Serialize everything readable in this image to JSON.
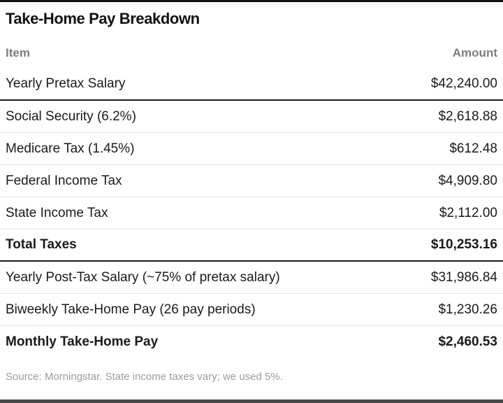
{
  "table": {
    "title": "Take-Home Pay Breakdown",
    "columns": {
      "item": "Item",
      "amount": "Amount"
    },
    "rows": [
      {
        "item": "Yearly Pretax Salary",
        "amount": "$42,240.00",
        "bold": false,
        "rule_below": "dark"
      },
      {
        "item": "Social Security (6.2%)",
        "amount": "$2,618.88",
        "bold": false,
        "rule_below": "light"
      },
      {
        "item": "Medicare Tax (1.45%)",
        "amount": "$612.48",
        "bold": false,
        "rule_below": "light"
      },
      {
        "item": "Federal Income Tax",
        "amount": "$4,909.80",
        "bold": false,
        "rule_below": "light"
      },
      {
        "item": "State Income Tax",
        "amount": "$2,112.00",
        "bold": false,
        "rule_below": "light"
      },
      {
        "item": "Total Taxes",
        "amount": "$10,253.16",
        "bold": true,
        "rule_below": "dark"
      },
      {
        "item": "Yearly Post-Tax Salary (~75% of pretax salary)",
        "amount": "$31,986.84",
        "bold": false,
        "rule_below": "light"
      },
      {
        "item": "Biweekly Take-Home Pay (26 pay periods)",
        "amount": "$1,230.26",
        "bold": false,
        "rule_below": "light"
      },
      {
        "item": "Monthly Take-Home Pay",
        "amount": "$2,460.53",
        "bold": true,
        "rule_below": "none"
      }
    ],
    "source": "Source: Morningstar. State income taxes vary; we used 5%.",
    "colors": {
      "rule_dark": "#1a1a1a",
      "rule_light": "#e3e3e3",
      "header_gray": "#7d7d7d",
      "source_gray": "#9b9b9b",
      "text": "#1a1a1a",
      "top_rule": "#111111",
      "bottom_rule": "#474747"
    }
  },
  "chart_data": {
    "type": "table",
    "title": "Take-Home Pay Breakdown",
    "columns": [
      "Item",
      "Amount"
    ],
    "rows": [
      [
        "Yearly Pretax Salary",
        42240.0
      ],
      [
        "Social Security (6.2%)",
        2618.88
      ],
      [
        "Medicare Tax (1.45%)",
        612.48
      ],
      [
        "Federal Income Tax",
        4909.8
      ],
      [
        "State Income Tax",
        2112.0
      ],
      [
        "Total Taxes",
        10253.16
      ],
      [
        "Yearly Post-Tax Salary (~75% of pretax salary)",
        31986.84
      ],
      [
        "Biweekly Take-Home Pay (26 pay periods)",
        1230.26
      ],
      [
        "Monthly Take-Home Pay",
        2460.53
      ]
    ],
    "bold_rows": [
      "Total Taxes",
      "Monthly Take-Home Pay"
    ],
    "source": "Source: Morningstar. State income taxes vary; we used 5%."
  }
}
